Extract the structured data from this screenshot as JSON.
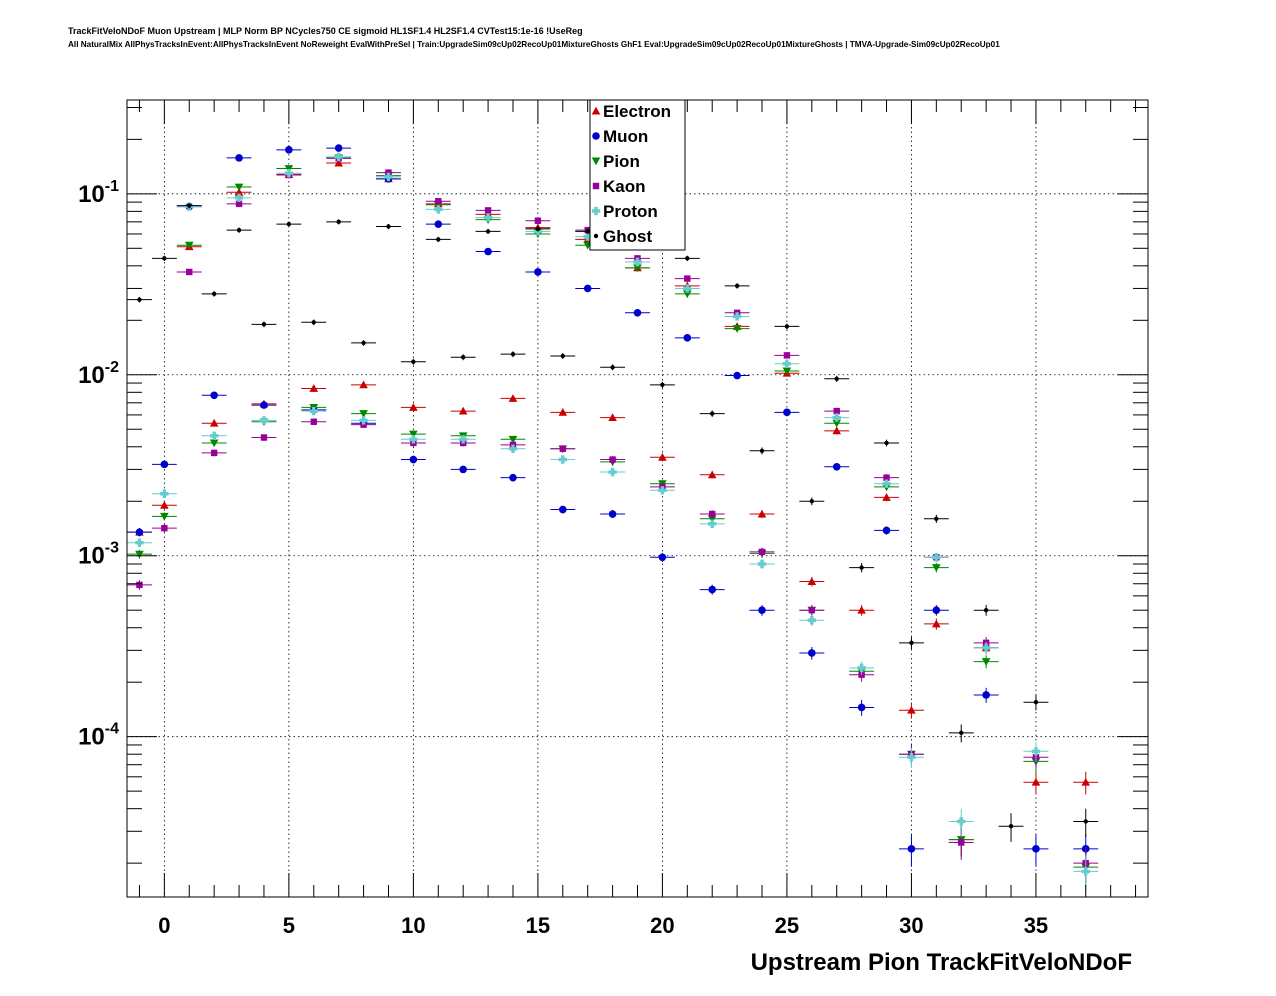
{
  "title_line1": "TrackFitVeloNDoF Muon Upstream | MLP Norm BP NCycles750 CE sigmoid HL1SF1.4 HL2SF1.4 CVTest15:1e-16 !UseReg",
  "title_line2": "All NaturalMix AllPhysTracksInEvent:AllPhysTracksInEvent NoReweight EvalWithPreSel | Train:UpgradeSim09cUp02RecoUp01MixtureGhosts GhF1 Eval:UpgradeSim09cUp02RecoUp01MixtureGhosts | TMVA-Upgrade-Sim09cUp02RecoUp01",
  "chart_data": {
    "type": "scatter",
    "xlabel": "Upstream Pion TrackFitVeloNDoF",
    "ylabel": "",
    "xlim": [
      -1.5,
      39.5
    ],
    "ylim": [
      1.3e-05,
      0.33
    ],
    "yscale": "log",
    "grid": true,
    "legend_position": "top-center",
    "x_ticks": [
      0,
      5,
      10,
      15,
      20,
      25,
      30,
      35
    ],
    "y_ticks": [
      {
        "base": "10",
        "exp": "-4",
        "value": 0.0001
      },
      {
        "base": "10",
        "exp": "-3",
        "value": 0.001
      },
      {
        "base": "10",
        "exp": "-2",
        "value": 0.01
      },
      {
        "base": "10",
        "exp": "-1",
        "value": 0.1
      }
    ],
    "series": [
      {
        "name": "Electron",
        "color": "#cc0000",
        "marker": "triangle-up",
        "points": [
          [
            -1,
            0.00135
          ],
          [
            0,
            0.0019
          ],
          [
            1,
            0.051
          ],
          [
            2,
            0.0054
          ],
          [
            3,
            0.102
          ],
          [
            4,
            0.0069
          ],
          [
            5,
            0.128
          ],
          [
            6,
            0.0084
          ],
          [
            7,
            0.148
          ],
          [
            8,
            0.0088
          ],
          [
            9,
            0.121
          ],
          [
            10,
            0.0066
          ],
          [
            11,
            0.088
          ],
          [
            12,
            0.0063
          ],
          [
            13,
            0.077
          ],
          [
            14,
            0.0074
          ],
          [
            15,
            0.065
          ],
          [
            16,
            0.0062
          ],
          [
            17,
            0.056
          ],
          [
            18,
            0.0058
          ],
          [
            19,
            0.039
          ],
          [
            20,
            0.0035
          ],
          [
            21,
            0.031
          ],
          [
            22,
            0.0028
          ],
          [
            23,
            0.0185
          ],
          [
            24,
            0.0017
          ],
          [
            25,
            0.0102
          ],
          [
            26,
            0.00072
          ],
          [
            27,
            0.0049
          ],
          [
            28,
            0.0005
          ],
          [
            29,
            0.0021
          ],
          [
            30,
            0.00014
          ],
          [
            31,
            0.00042
          ],
          [
            32,
            2.7e-05
          ],
          [
            33,
            0.00031
          ],
          [
            35,
            5.6e-05
          ],
          [
            37,
            5.6e-05
          ]
        ]
      },
      {
        "name": "Muon",
        "color": "#0000cc",
        "marker": "circle",
        "points": [
          [
            -1,
            0.00135
          ],
          [
            0,
            0.0032
          ],
          [
            1,
            0.085
          ],
          [
            2,
            0.0077
          ],
          [
            3,
            0.158
          ],
          [
            4,
            0.0068
          ],
          [
            5,
            0.175
          ],
          [
            6,
            0.0064
          ],
          [
            7,
            0.179
          ],
          [
            8,
            0.0054
          ],
          [
            9,
            0.121
          ],
          [
            10,
            0.0034
          ],
          [
            11,
            0.068
          ],
          [
            12,
            0.003
          ],
          [
            13,
            0.048
          ],
          [
            14,
            0.0027
          ],
          [
            15,
            0.037
          ],
          [
            16,
            0.0018
          ],
          [
            17,
            0.03
          ],
          [
            18,
            0.0017
          ],
          [
            19,
            0.022
          ],
          [
            20,
            0.00098
          ],
          [
            21,
            0.016
          ],
          [
            22,
            0.00065
          ],
          [
            23,
            0.0099
          ],
          [
            24,
            0.0005
          ],
          [
            25,
            0.0062
          ],
          [
            26,
            0.00029
          ],
          [
            27,
            0.0031
          ],
          [
            28,
            0.000145
          ],
          [
            29,
            0.00138
          ],
          [
            30,
            2.4e-05
          ],
          [
            31,
            0.0005
          ],
          [
            33,
            0.00017
          ],
          [
            35,
            2.4e-05
          ],
          [
            37,
            2.4e-05
          ]
        ]
      },
      {
        "name": "Pion",
        "color": "#008800",
        "marker": "triangle-down",
        "points": [
          [
            -1,
            0.00102
          ],
          [
            0,
            0.00165
          ],
          [
            1,
            0.052
          ],
          [
            2,
            0.0042
          ],
          [
            3,
            0.109
          ],
          [
            4,
            0.0055
          ],
          [
            5,
            0.138
          ],
          [
            6,
            0.0066
          ],
          [
            7,
            0.158
          ],
          [
            8,
            0.0061
          ],
          [
            9,
            0.126
          ],
          [
            10,
            0.0047
          ],
          [
            11,
            0.087
          ],
          [
            12,
            0.0046
          ],
          [
            13,
            0.072
          ],
          [
            14,
            0.0044
          ],
          [
            15,
            0.06
          ],
          [
            16,
            0.0039
          ],
          [
            17,
            0.052
          ],
          [
            18,
            0.0033
          ],
          [
            19,
            0.039
          ],
          [
            20,
            0.0025
          ],
          [
            21,
            0.028
          ],
          [
            22,
            0.0016
          ],
          [
            23,
            0.018
          ],
          [
            24,
            0.00103
          ],
          [
            25,
            0.0105
          ],
          [
            26,
            0.0005
          ],
          [
            27,
            0.0054
          ],
          [
            28,
            0.00023
          ],
          [
            29,
            0.0024
          ],
          [
            30,
            8e-05
          ],
          [
            31,
            0.00086
          ],
          [
            32,
            2.7e-05
          ],
          [
            33,
            0.00026
          ],
          [
            35,
            7.3e-05
          ],
          [
            37,
            1.9e-05
          ]
        ]
      },
      {
        "name": "Kaon",
        "color": "#990099",
        "marker": "square",
        "points": [
          [
            -1,
            0.00069
          ],
          [
            0,
            0.00142
          ],
          [
            1,
            0.037
          ],
          [
            2,
            0.0037
          ],
          [
            3,
            0.088
          ],
          [
            4,
            0.0045
          ],
          [
            5,
            0.127
          ],
          [
            6,
            0.0055
          ],
          [
            7,
            0.157
          ],
          [
            8,
            0.0053
          ],
          [
            9,
            0.131
          ],
          [
            10,
            0.0042
          ],
          [
            11,
            0.091
          ],
          [
            12,
            0.0042
          ],
          [
            13,
            0.081
          ],
          [
            14,
            0.0041
          ],
          [
            15,
            0.071
          ],
          [
            16,
            0.0039
          ],
          [
            17,
            0.063
          ],
          [
            18,
            0.0034
          ],
          [
            19,
            0.044
          ],
          [
            20,
            0.0024
          ],
          [
            21,
            0.034
          ],
          [
            22,
            0.0017
          ],
          [
            23,
            0.022
          ],
          [
            24,
            0.00105
          ],
          [
            25,
            0.0128
          ],
          [
            26,
            0.0005
          ],
          [
            27,
            0.0063
          ],
          [
            28,
            0.00022
          ],
          [
            29,
            0.0027
          ],
          [
            30,
            8e-05
          ],
          [
            31,
            0.00098
          ],
          [
            32,
            2.6e-05
          ],
          [
            33,
            0.00033
          ],
          [
            35,
            7.7e-05
          ],
          [
            37,
            2e-05
          ]
        ]
      },
      {
        "name": "Proton",
        "color": "#66cccc",
        "marker": "cross",
        "points": [
          [
            -1,
            0.00118
          ],
          [
            0,
            0.0022
          ],
          [
            1,
            0.085
          ],
          [
            2,
            0.0046
          ],
          [
            3,
            0.095
          ],
          [
            4,
            0.0056
          ],
          [
            5,
            0.13
          ],
          [
            6,
            0.0063
          ],
          [
            7,
            0.16
          ],
          [
            8,
            0.0056
          ],
          [
            9,
            0.124
          ],
          [
            10,
            0.0044
          ],
          [
            11,
            0.082
          ],
          [
            12,
            0.0044
          ],
          [
            13,
            0.074
          ],
          [
            14,
            0.0039
          ],
          [
            15,
            0.062
          ],
          [
            16,
            0.0034
          ],
          [
            17,
            0.058
          ],
          [
            18,
            0.0029
          ],
          [
            19,
            0.042
          ],
          [
            20,
            0.0023
          ],
          [
            21,
            0.03
          ],
          [
            22,
            0.0015
          ],
          [
            23,
            0.021
          ],
          [
            24,
            0.0009
          ],
          [
            25,
            0.0115
          ],
          [
            26,
            0.00044
          ],
          [
            27,
            0.0058
          ],
          [
            28,
            0.00024
          ],
          [
            29,
            0.0025
          ],
          [
            30,
            7.7e-05
          ],
          [
            31,
            0.00098
          ],
          [
            32,
            3.4e-05
          ],
          [
            33,
            0.00031
          ],
          [
            35,
            8.3e-05
          ],
          [
            37,
            1.8e-05
          ]
        ]
      },
      {
        "name": "Ghost",
        "color": "#000000",
        "marker": "dot",
        "points": [
          [
            -1,
            0.026
          ],
          [
            0,
            0.044
          ],
          [
            1,
            0.086
          ],
          [
            2,
            0.028
          ],
          [
            3,
            0.063
          ],
          [
            4,
            0.019
          ],
          [
            5,
            0.068
          ],
          [
            6,
            0.0195
          ],
          [
            7,
            0.07
          ],
          [
            8,
            0.015
          ],
          [
            9,
            0.066
          ],
          [
            10,
            0.0118
          ],
          [
            11,
            0.056
          ],
          [
            12,
            0.0125
          ],
          [
            13,
            0.062
          ],
          [
            14,
            0.013
          ],
          [
            15,
            0.064
          ],
          [
            16,
            0.0127
          ],
          [
            17,
            0.062
          ],
          [
            18,
            0.011
          ],
          [
            19,
            0.054
          ],
          [
            20,
            0.0088
          ],
          [
            21,
            0.044
          ],
          [
            22,
            0.0061
          ],
          [
            23,
            0.031
          ],
          [
            24,
            0.0038
          ],
          [
            25,
            0.0185
          ],
          [
            26,
            0.002
          ],
          [
            27,
            0.0095
          ],
          [
            28,
            0.00086
          ],
          [
            29,
            0.0042
          ],
          [
            30,
            0.00033
          ],
          [
            31,
            0.0016
          ],
          [
            32,
            0.000105
          ],
          [
            33,
            0.0005
          ],
          [
            34,
            3.2e-05
          ],
          [
            35,
            0.000155
          ],
          [
            37,
            3.4e-05
          ]
        ]
      }
    ]
  }
}
